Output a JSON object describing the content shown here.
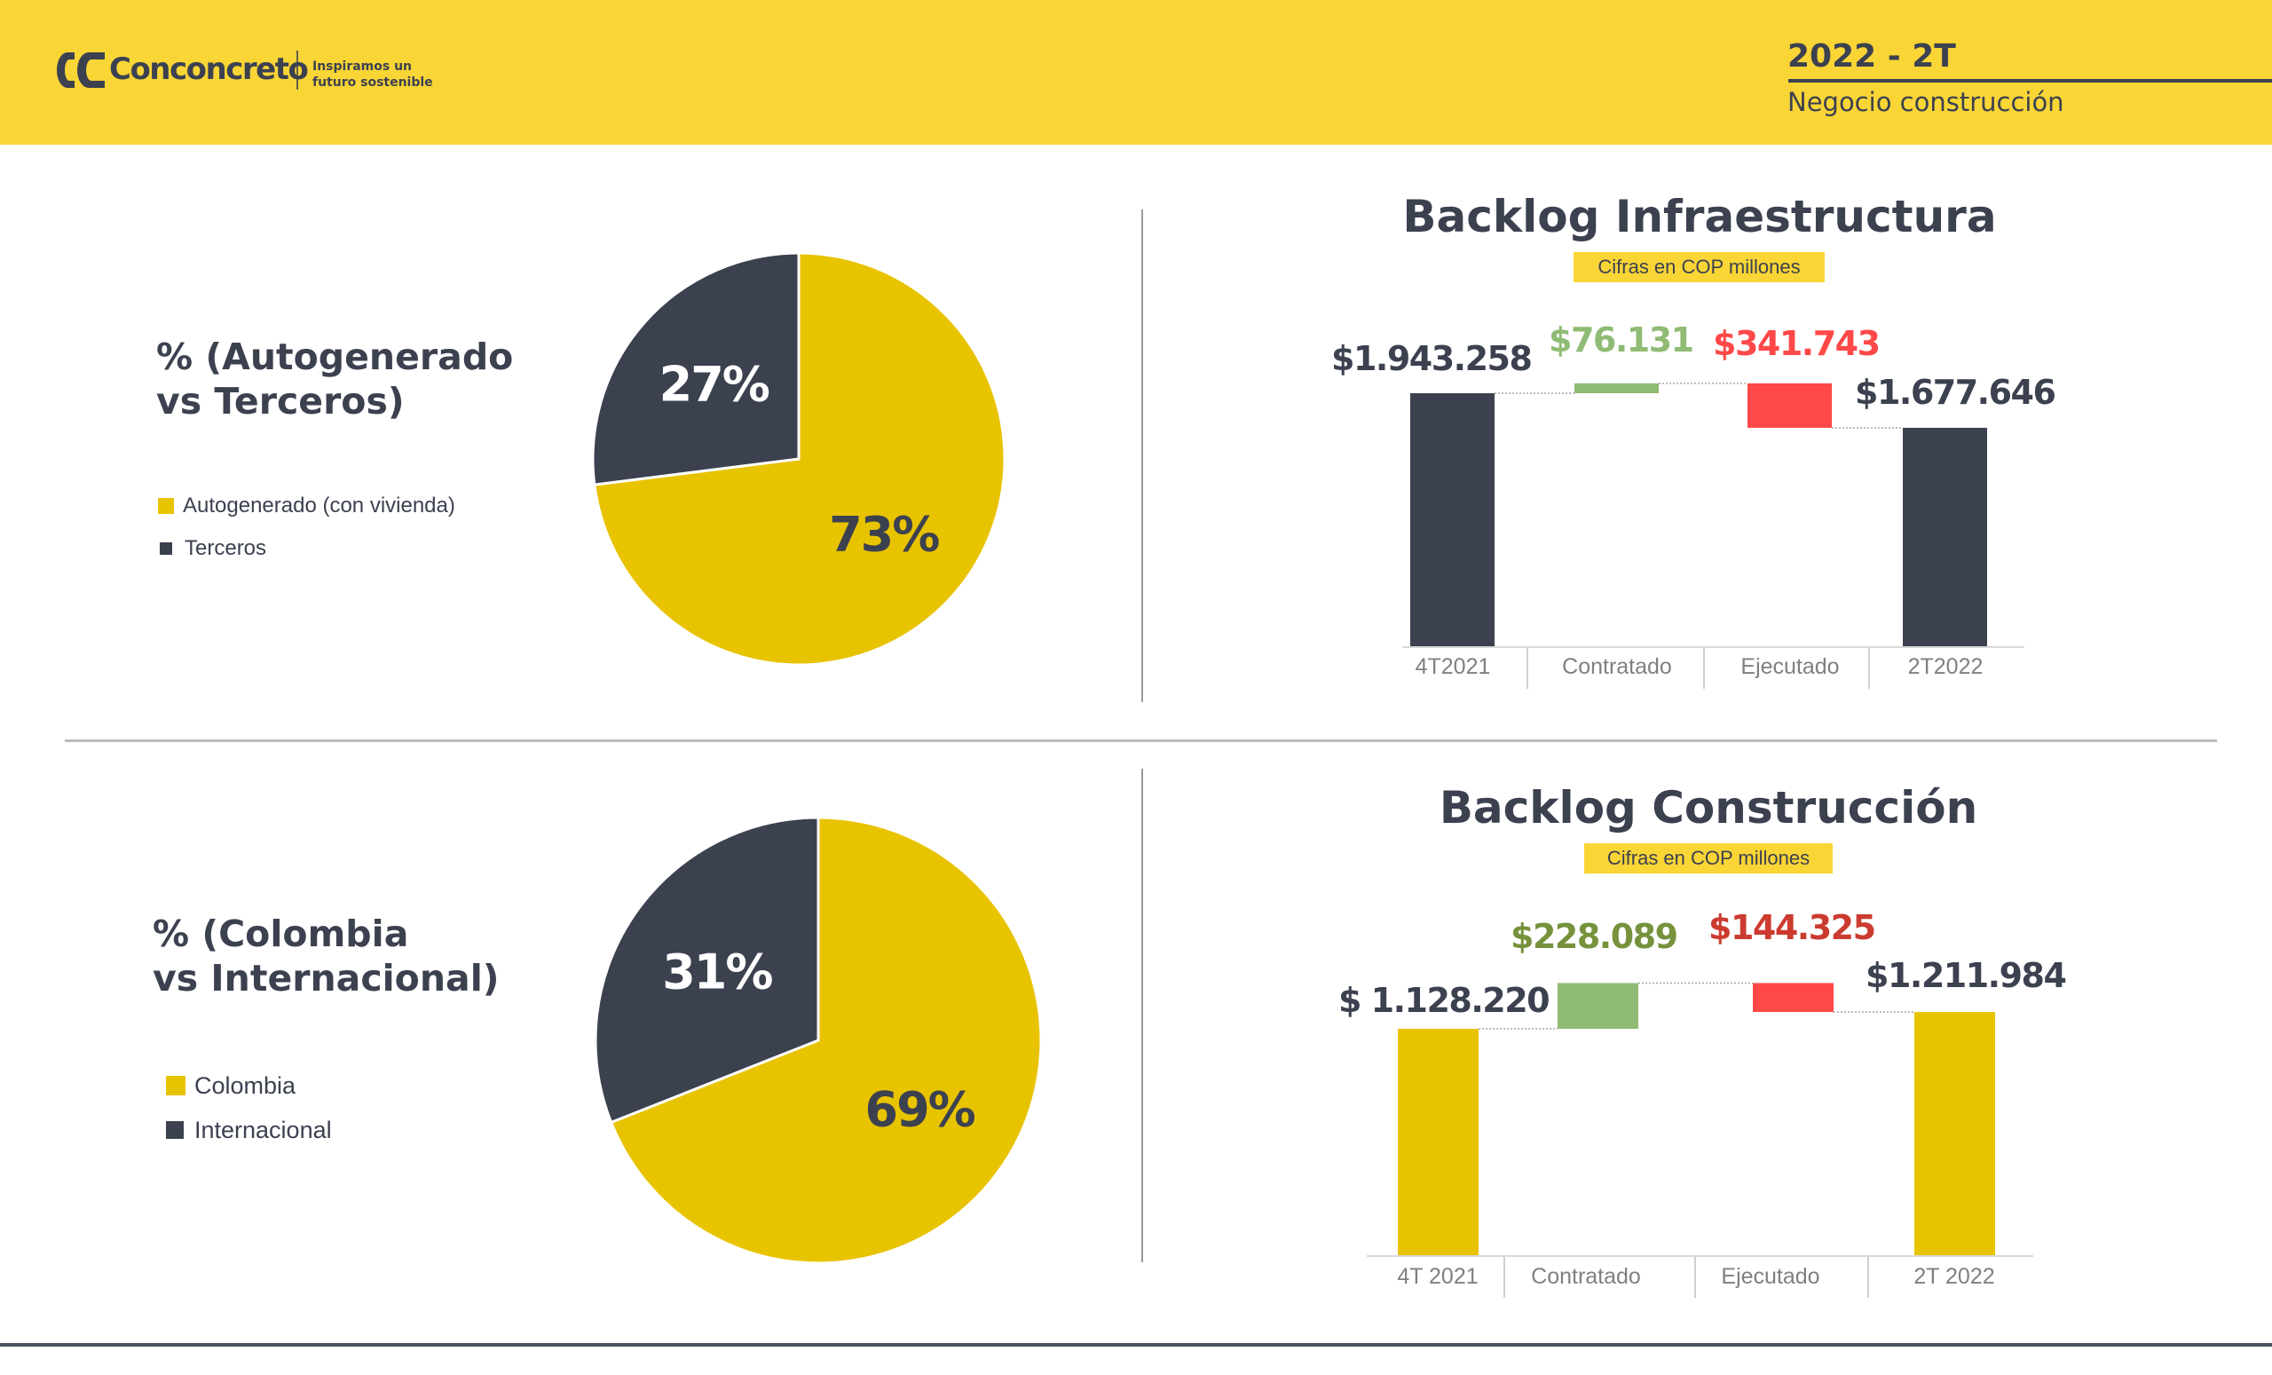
{
  "header": {
    "brand": "Conconcreto",
    "tagline_line1": "Inspiramos un",
    "tagline_line2": "futuro sostenible",
    "period": "2022 - 2T",
    "business": "Negocio construcción"
  },
  "colors": {
    "header_bg": "#f9d535",
    "dark": "#3c4150",
    "yellow": "#e8c300",
    "green_bar": "#8fbb74",
    "red_bar": "#ff4848",
    "green_label_infra": "#8fbb74",
    "red_label_infra": "#ff4848",
    "green_label_construction": "#76923c",
    "red_label_construction": "#cc3b2f",
    "axis_text": "#808080"
  },
  "chart_data": [
    {
      "type": "pie",
      "title_line1": "% (Autogenerado",
      "title_line2": "vs Terceros)",
      "legend_placement": "left",
      "slices": [
        {
          "name": "Autogenerado (con vivienda)",
          "value": 73,
          "label": "73%",
          "color": "#e8c300",
          "label_color": "#3c4150"
        },
        {
          "name": "Terceros",
          "value": 27,
          "label": "27%",
          "color": "#3c4150",
          "label_color": "#ffffff"
        }
      ]
    },
    {
      "type": "pie",
      "title_line1": "% (Colombia",
      "title_line2": "vs Internacional)",
      "legend_placement": "left",
      "slices": [
        {
          "name": "Colombia",
          "value": 69,
          "label": "69%",
          "color": "#e8c300",
          "label_color": "#3c4150"
        },
        {
          "name": "Internacional",
          "value": 31,
          "label": "31%",
          "color": "#3c4150",
          "label_color": "#ffffff"
        }
      ]
    },
    {
      "type": "bar",
      "subtype": "waterfall",
      "title": "Backlog Infraestructura",
      "subtitle": "Cifras en COP millones",
      "categories": [
        "4T2021",
        "Contratado",
        "Ejecutado",
        "2T2022"
      ],
      "values": [
        1943258,
        76131,
        -341743,
        1677646
      ],
      "kinds": [
        "total",
        "increase",
        "decrease",
        "total"
      ],
      "labels": [
        "$1.943.258",
        "$76.131",
        "$341.743",
        "$1.677.646"
      ],
      "total_color": "#3c4150",
      "ylim": [
        0,
        1943258
      ]
    },
    {
      "type": "bar",
      "subtype": "waterfall",
      "title": "Backlog Construcción",
      "subtitle": "Cifras en COP millones",
      "categories": [
        "4T 2021",
        "Contratado",
        "Ejecutado",
        "2T 2022"
      ],
      "values": [
        1128220,
        228089,
        -144325,
        1211984
      ],
      "kinds": [
        "total",
        "increase",
        "decrease",
        "total"
      ],
      "labels": [
        "$ 1.128.220",
        "$228.089",
        "$144.325",
        "$1.211.984"
      ],
      "total_color": "#e8c300",
      "ylim": [
        0,
        1356309
      ]
    }
  ]
}
